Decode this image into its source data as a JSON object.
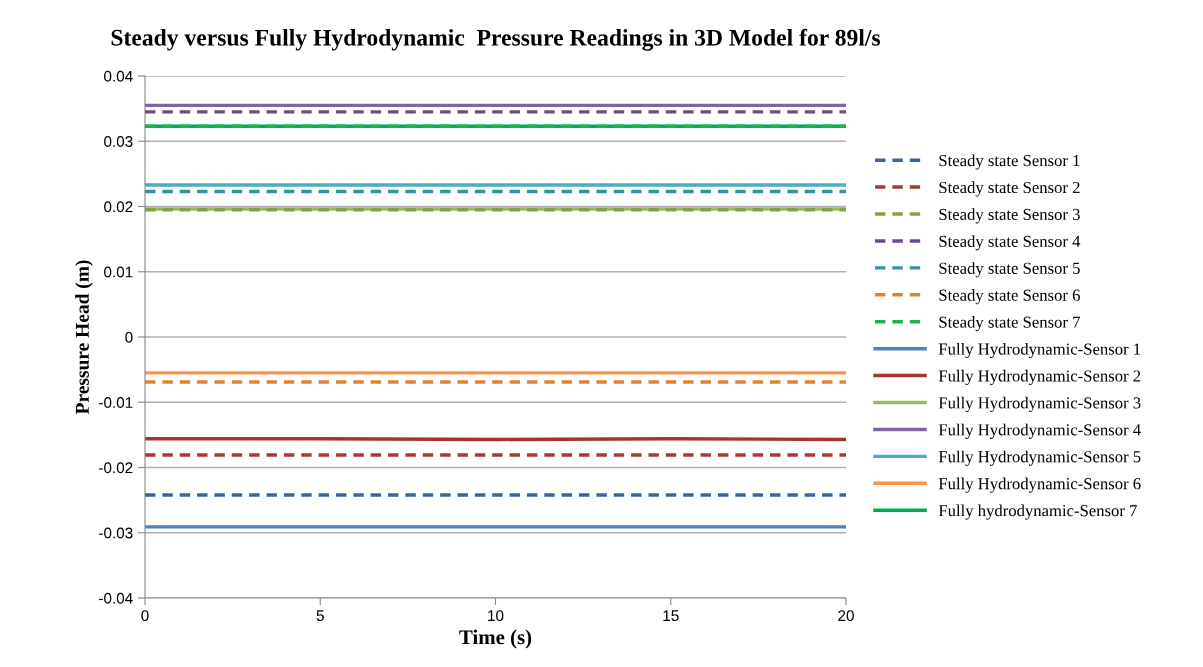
{
  "chart_data": {
    "type": "line",
    "title": "Steady versus Fully Hydrodynamic  Pressure Readings in 3D Model for 89l/s",
    "xlabel": "Time (s)",
    "ylabel": "Pressure Head (m)",
    "xlim": [
      0,
      20
    ],
    "xticks": [
      0,
      5,
      10,
      15,
      20
    ],
    "ylim": [
      -0.04,
      0.04
    ],
    "yticks": [
      -0.04,
      -0.03,
      -0.02,
      -0.01,
      0,
      0.01,
      0.02,
      0.03,
      0.04
    ],
    "grid": "y",
    "legend": "right",
    "marker": "none",
    "series": [
      {
        "name": "Steady state Sensor 1",
        "color": "#3a64a0",
        "line_style": "dashed",
        "x": [
          0,
          20
        ],
        "values": [
          -0.0242,
          -0.0242
        ]
      },
      {
        "name": "Steady state Sensor 2",
        "color": "#a53a37",
        "line_style": "dashed",
        "x": [
          0,
          20
        ],
        "values": [
          -0.0181,
          -0.0181
        ]
      },
      {
        "name": "Steady state Sensor 3",
        "color": "#86a23b",
        "line_style": "dashed",
        "x": [
          0,
          20
        ],
        "values": [
          0.0195,
          0.0195
        ]
      },
      {
        "name": "Steady state Sensor 4",
        "color": "#6b4b8c",
        "line_style": "dashed",
        "x": [
          0,
          20
        ],
        "values": [
          0.0345,
          0.0345
        ]
      },
      {
        "name": "Steady state Sensor 5",
        "color": "#3091aa",
        "line_style": "dashed",
        "x": [
          0,
          20
        ],
        "values": [
          0.0223,
          0.0223
        ]
      },
      {
        "name": "Steady state Sensor 6",
        "color": "#e0832f",
        "line_style": "dashed",
        "x": [
          0,
          20
        ],
        "values": [
          -0.0069,
          -0.0069
        ]
      },
      {
        "name": "Steady state Sensor 7",
        "color": "#1fb050",
        "line_style": "dashed",
        "x": [
          0,
          20
        ],
        "values": [
          0.0323,
          0.0323
        ]
      },
      {
        "name": "Fully Hydrodynamic-Sensor 1",
        "color": "#4f81bd",
        "line_style": "solid",
        "x": [
          0,
          5,
          10,
          15,
          20
        ],
        "values": [
          -0.0291,
          -0.0291,
          -0.0291,
          -0.0291,
          -0.0291
        ]
      },
      {
        "name": "Fully Hydrodynamic-Sensor 2",
        "color": "#a33532",
        "line_style": "solid",
        "x": [
          0,
          5,
          10,
          15,
          20
        ],
        "values": [
          -0.0156,
          -0.0156,
          -0.0157,
          -0.0156,
          -0.0157
        ]
      },
      {
        "name": "Fully Hydrodynamic-Sensor 3",
        "color": "#9bbb59",
        "line_style": "solid",
        "x": [
          0,
          5,
          10,
          15,
          20
        ],
        "values": [
          0.0196,
          0.0196,
          0.0196,
          0.0196,
          0.0196
        ]
      },
      {
        "name": "Fully Hydrodynamic-Sensor 4",
        "color": "#8064a2",
        "line_style": "solid",
        "x": [
          0,
          5,
          10,
          15,
          20
        ],
        "values": [
          0.0355,
          0.0355,
          0.0355,
          0.0355,
          0.0355
        ]
      },
      {
        "name": "Fully Hydrodynamic-Sensor 5",
        "color": "#4bacc6",
        "line_style": "solid",
        "x": [
          0,
          5,
          10,
          15,
          20
        ],
        "values": [
          0.0233,
          0.0233,
          0.0233,
          0.0233,
          0.0233
        ]
      },
      {
        "name": "Fully Hydrodynamic-Sensor 6",
        "color": "#f79646",
        "line_style": "solid",
        "x": [
          0,
          5,
          10,
          15,
          20
        ],
        "values": [
          -0.0055,
          -0.0055,
          -0.0055,
          -0.0055,
          -0.0055
        ]
      },
      {
        "name": "Fully hydrodynamic-Sensor 7",
        "color": "#00b050",
        "line_style": "solid",
        "x": [
          0,
          5,
          10,
          15,
          20
        ],
        "values": [
          0.0323,
          0.0323,
          0.0323,
          0.0323,
          0.0323
        ]
      }
    ]
  }
}
